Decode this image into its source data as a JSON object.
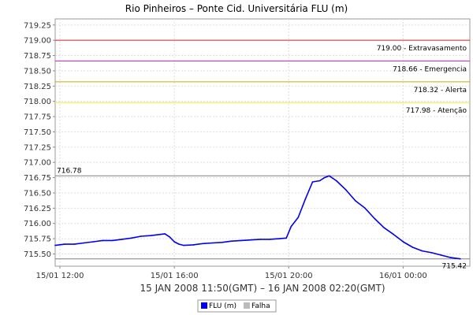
{
  "chart_data": {
    "type": "line",
    "title": "Rio Pinheiros – Ponte Cid. Universitária FLU (m)",
    "xlabel": "15 JAN 2008 11:50(GMT) – 16 JAN 2008 02:20(GMT)",
    "ylabel": "",
    "x_range": [
      "2008-01-15 11:50",
      "2008-01-16 02:20"
    ],
    "ylim": [
      715.3,
      719.35
    ],
    "y_ticks": [
      "715.50",
      "715.75",
      "716.00",
      "716.25",
      "716.50",
      "716.75",
      "717.00",
      "717.25",
      "717.50",
      "717.75",
      "718.00",
      "718.25",
      "718.50",
      "718.75",
      "719.00",
      "719.25"
    ],
    "x_ticks": [
      {
        "time": "2008-01-15 12:00",
        "label": "15/01 12:00"
      },
      {
        "time": "2008-01-15 16:00",
        "label": "15/01 16:00"
      },
      {
        "time": "2008-01-15 20:00",
        "label": "15/01 20:00"
      },
      {
        "time": "2008-01-16 00:00",
        "label": "16/01 00:00"
      }
    ],
    "grid": true,
    "legend_position": "bottom",
    "thresholds": [
      {
        "value": 719.0,
        "label": "719.00 - Extravasamento",
        "color": "#cc2222"
      },
      {
        "value": 718.66,
        "label": "718.66 - Emergencia",
        "color": "#dd22dd"
      },
      {
        "value": 718.32,
        "label": "718.32 - Alerta",
        "color": "#ccaa00"
      },
      {
        "value": 717.98,
        "label": "717.98 - Atenção",
        "color": "#eeee33"
      }
    ],
    "max_line": {
      "value": 716.78,
      "label": "716.78",
      "color": "#808080"
    },
    "min_line": {
      "value": 715.42,
      "label": "715.42",
      "color": "#808080"
    },
    "series": [
      {
        "name": "FLU (m)",
        "color": "#0000ee",
        "points": [
          [
            "2008-01-15 11:50",
            715.64
          ],
          [
            "2008-01-15 12:10",
            715.66
          ],
          [
            "2008-01-15 12:30",
            715.66
          ],
          [
            "2008-01-15 12:50",
            715.68
          ],
          [
            "2008-01-15 13:10",
            715.7
          ],
          [
            "2008-01-15 13:30",
            715.72
          ],
          [
            "2008-01-15 13:50",
            715.72
          ],
          [
            "2008-01-15 14:10",
            715.74
          ],
          [
            "2008-01-15 14:30",
            715.76
          ],
          [
            "2008-01-15 14:50",
            715.79
          ],
          [
            "2008-01-15 15:10",
            715.8
          ],
          [
            "2008-01-15 15:30",
            715.82
          ],
          [
            "2008-01-15 15:40",
            715.83
          ],
          [
            "2008-01-15 15:50",
            715.78
          ],
          [
            "2008-01-15 16:00",
            715.7
          ],
          [
            "2008-01-15 16:10",
            715.66
          ],
          [
            "2008-01-15 16:20",
            715.64
          ],
          [
            "2008-01-15 16:40",
            715.65
          ],
          [
            "2008-01-15 17:00",
            715.67
          ],
          [
            "2008-01-15 17:20",
            715.68
          ],
          [
            "2008-01-15 17:40",
            715.69
          ],
          [
            "2008-01-15 18:00",
            715.71
          ],
          [
            "2008-01-15 18:20",
            715.72
          ],
          [
            "2008-01-15 18:40",
            715.73
          ],
          [
            "2008-01-15 19:00",
            715.74
          ],
          [
            "2008-01-15 19:20",
            715.74
          ],
          [
            "2008-01-15 19:40",
            715.75
          ],
          [
            "2008-01-15 19:55",
            715.76
          ],
          [
            "2008-01-15 20:05",
            715.95
          ],
          [
            "2008-01-15 20:20",
            716.1
          ],
          [
            "2008-01-15 20:35",
            716.4
          ],
          [
            "2008-01-15 20:50",
            716.68
          ],
          [
            "2008-01-15 21:05",
            716.7
          ],
          [
            "2008-01-15 21:15",
            716.75
          ],
          [
            "2008-01-15 21:25",
            716.78
          ],
          [
            "2008-01-15 21:40",
            716.7
          ],
          [
            "2008-01-15 22:00",
            716.55
          ],
          [
            "2008-01-15 22:20",
            716.37
          ],
          [
            "2008-01-15 22:40",
            716.25
          ],
          [
            "2008-01-15 23:00",
            716.08
          ],
          [
            "2008-01-15 23:20",
            715.93
          ],
          [
            "2008-01-15 23:40",
            715.82
          ],
          [
            "2008-01-16 00:00",
            715.7
          ],
          [
            "2008-01-16 00:20",
            715.61
          ],
          [
            "2008-01-16 00:40",
            715.55
          ],
          [
            "2008-01-16 01:00",
            715.52
          ],
          [
            "2008-01-16 01:20",
            715.48
          ],
          [
            "2008-01-16 01:40",
            715.44
          ],
          [
            "2008-01-16 01:50",
            715.43
          ],
          [
            "2008-01-16 02:00",
            715.42
          ]
        ]
      },
      {
        "name": "Falha",
        "color": "#bbbbbb",
        "points": []
      }
    ]
  }
}
